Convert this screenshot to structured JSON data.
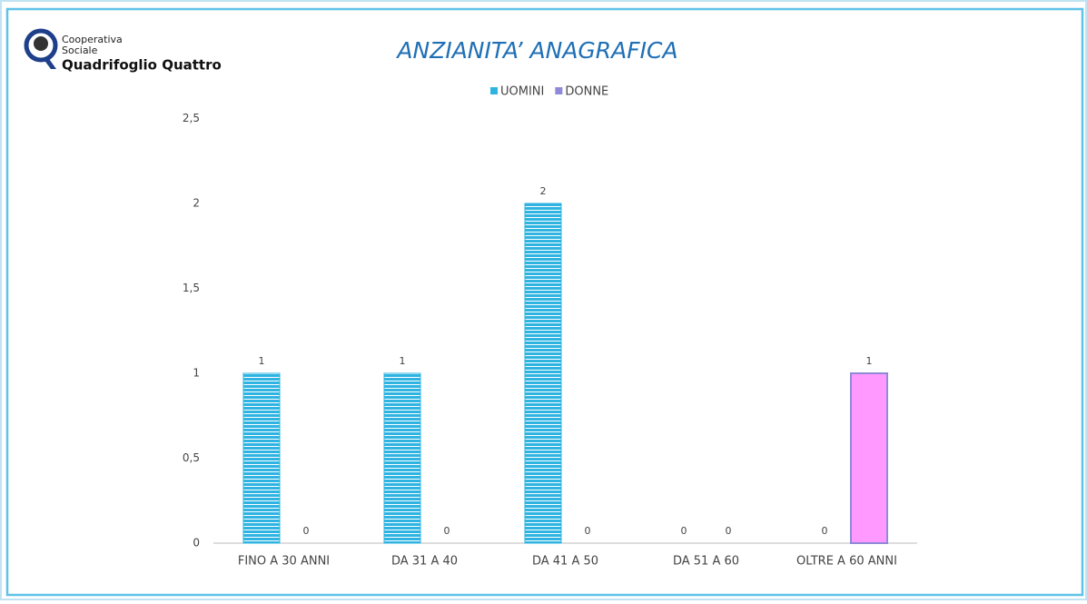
{
  "logo": {
    "line1": "Cooperativa",
    "line2": "Sociale",
    "name": "Quadrifoglio Quattro"
  },
  "chart_data": {
    "type": "bar",
    "title": "ANZIANITA’ ANAGRAFICA",
    "categories": [
      "FINO A 30 ANNI",
      "DA 31 A 40",
      "DA 41 A 50",
      "DA 51 A 60",
      "OLTRE A 60 ANNI"
    ],
    "series": [
      {
        "name": "UOMINI",
        "color": "#2fb4e2",
        "edgecolor": "#2fb4e2",
        "hatch": true,
        "values": [
          1,
          1,
          2,
          0,
          0
        ]
      },
      {
        "name": "DONNE",
        "color": "#ff99ff",
        "edgecolor": "#8e8ad8",
        "hatch": false,
        "values": [
          0,
          0,
          0,
          0,
          1
        ]
      }
    ],
    "ylim": [
      0,
      2.5
    ],
    "yticks": [
      0,
      {
        "value": 0.5,
        "label": "0,5"
      },
      1,
      {
        "value": 1.5,
        "label": "1,5"
      },
      2,
      {
        "value": 2.5,
        "label": "2,5"
      }
    ],
    "grid": false,
    "legend": "top"
  }
}
